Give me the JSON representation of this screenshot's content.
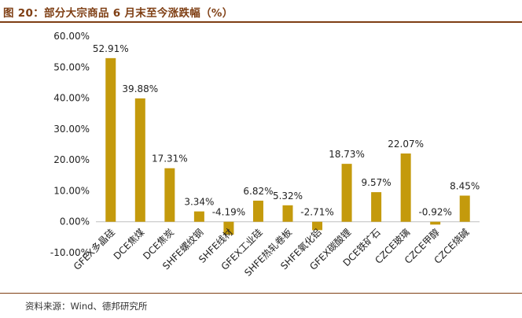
{
  "header": {
    "title": "图 20：部分大宗商品 6 月末至今涨跌幅（%）"
  },
  "footer": {
    "source": "资料来源：Wind、德邦研究所"
  },
  "colors": {
    "bar": "#C49A0C",
    "title": "#7F3F14",
    "text": "#222222"
  },
  "chart_data": {
    "type": "bar",
    "title": "部分大宗商品 6 月末至今涨跌幅（%）",
    "xlabel": "",
    "ylabel": "",
    "ylim": [
      -10,
      60
    ],
    "yticks": [
      "60.00%",
      "50.00%",
      "40.00%",
      "30.00%",
      "20.00%",
      "10.00%",
      "0.00%",
      "-10.00%"
    ],
    "categories": [
      "GFEX多晶硅",
      "DCE焦煤",
      "DCE焦炭",
      "SHFE螺纹钢",
      "SHFE线材",
      "GFEX工业硅",
      "SHFE热轧卷板",
      "SHFE氧化铝",
      "GFEX碳酸锂",
      "DCE铁矿石",
      "CZCE玻璃",
      "CZCE甲醇",
      "CZCE烧碱"
    ],
    "values": [
      52.91,
      39.88,
      17.31,
      3.34,
      -4.19,
      6.82,
      5.32,
      -2.71,
      18.73,
      9.57,
      22.07,
      -0.92,
      8.45
    ],
    "value_labels": [
      "52.91%",
      "39.88%",
      "17.31%",
      "3.34%",
      "-4.19%",
      "6.82%",
      "5.32%",
      "-2.71%",
      "18.73%",
      "9.57%",
      "22.07%",
      "-0.92%",
      "8.45%"
    ],
    "grid": false,
    "legend": "none"
  }
}
